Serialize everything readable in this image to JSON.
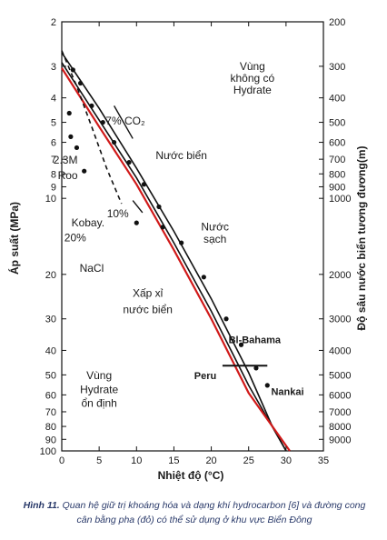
{
  "chart_data": {
    "type": "line",
    "xlabel": "Nhiệt độ (°C)",
    "ylabel": "Áp suất (MPa)",
    "y2label": "Độ sâu nước biển tương đương(m)",
    "xlim": [
      0,
      35
    ],
    "ylim": [
      2,
      100
    ],
    "yscale": "log",
    "x_ticks": [
      "0",
      "5",
      "10",
      "15",
      "20",
      "25",
      "30",
      "35"
    ],
    "y_ticks": [
      "2",
      "3",
      "4",
      "5",
      "6",
      "7",
      "8",
      "9",
      "10",
      "20",
      "30",
      "40",
      "50",
      "60",
      "70",
      "80",
      "90",
      "100"
    ],
    "y2_ticks": [
      "200",
      "300",
      "400",
      "500",
      "600",
      "700",
      "800",
      "900",
      "1000",
      "2000",
      "3000",
      "4000",
      "5000",
      "6000",
      "7000",
      "8000",
      "9000"
    ],
    "series": [
      {
        "name": "Nước sạch",
        "color": "#111111",
        "style": "solid",
        "points": [
          [
            0,
            2.65
          ],
          [
            5,
            4.4
          ],
          [
            10,
            7.6
          ],
          [
            15,
            13.5
          ],
          [
            20,
            25
          ],
          [
            25,
            49
          ],
          [
            28,
            78
          ],
          [
            30,
            100
          ]
        ]
      },
      {
        "name": "Nước biển",
        "color": "#111111",
        "style": "solid",
        "points": [
          [
            0,
            2.9
          ],
          [
            5,
            4.9
          ],
          [
            10,
            8.3
          ],
          [
            15,
            15
          ],
          [
            20,
            28
          ],
          [
            25,
            55
          ],
          [
            30,
            100
          ]
        ]
      },
      {
        "name": "Xấp xỉ nước biển",
        "color": "#d11a1a",
        "style": "solid",
        "points": [
          [
            0,
            3.05
          ],
          [
            5,
            5.2
          ],
          [
            10,
            8.8
          ],
          [
            15,
            16
          ],
          [
            20,
            30
          ],
          [
            25,
            59
          ],
          [
            30.5,
            100
          ]
        ]
      },
      {
        "name": "",
        "color": "#111111",
        "style": "dashed",
        "points": [
          [
            0,
            2.6
          ],
          [
            2,
            3.6
          ],
          [
            4,
            5.2
          ],
          [
            6,
            7.6
          ],
          [
            8,
            10.5
          ]
        ]
      }
    ],
    "markers": [
      {
        "x": 1.5,
        "y": 3.1
      },
      {
        "x": 2.5,
        "y": 3.5
      },
      {
        "x": 4,
        "y": 4.3
      },
      {
        "x": 5.5,
        "y": 5.0
      },
      {
        "x": 7,
        "y": 6.0
      },
      {
        "x": 9,
        "y": 7.2
      },
      {
        "x": 11,
        "y": 8.8
      },
      {
        "x": 13,
        "y": 10.8
      },
      {
        "x": 16,
        "y": 15
      },
      {
        "x": 19,
        "y": 20.5
      },
      {
        "x": 22,
        "y": 30
      },
      {
        "x": 24,
        "y": 38
      },
      {
        "x": 26,
        "y": 47
      },
      {
        "x": 27.5,
        "y": 55
      },
      {
        "x": 1,
        "y": 4.6
      },
      {
        "x": 2,
        "y": 6.3
      },
      {
        "x": 3,
        "y": 7.8
      },
      {
        "x": 10,
        "y": 12.5
      },
      {
        "x": 13.5,
        "y": 13
      },
      {
        "x": 1.2,
        "y": 5.7
      }
    ],
    "annotations": [
      {
        "text": "Vùng",
        "x": 25.5,
        "y": 3.1,
        "weight": "normal"
      },
      {
        "text": "không có",
        "x": 25.5,
        "y": 3.45,
        "weight": "normal"
      },
      {
        "text": "Hydrate",
        "x": 25.5,
        "y": 3.85,
        "weight": "normal"
      },
      {
        "text": "7% CO₂",
        "x": 8.5,
        "y": 5.1,
        "weight": "normal"
      },
      {
        "text": "Nước biển",
        "x": 16,
        "y": 7.0,
        "weight": "normal"
      },
      {
        "text": "2.3M",
        "x": 0.5,
        "y": 7.3,
        "weight": "normal"
      },
      {
        "text": "Roo",
        "x": 0.8,
        "y": 8.4,
        "weight": "normal"
      },
      {
        "text": "10%",
        "x": 7.5,
        "y": 11.9,
        "weight": "normal"
      },
      {
        "text": "Kobay.",
        "x": 3.5,
        "y": 12.9,
        "weight": "normal"
      },
      {
        "text": "20%",
        "x": 1.8,
        "y": 14.8,
        "weight": "normal"
      },
      {
        "text": "Nước",
        "x": 20.5,
        "y": 13.4,
        "weight": "normal"
      },
      {
        "text": "sạch",
        "x": 20.5,
        "y": 15.0,
        "weight": "normal"
      },
      {
        "text": "NaCl",
        "x": 4,
        "y": 19.5,
        "weight": "normal"
      },
      {
        "text": "Xấp xỉ",
        "x": 11.5,
        "y": 24.5,
        "weight": "normal"
      },
      {
        "text": "nước biển",
        "x": 11.5,
        "y": 28.5,
        "weight": "normal"
      },
      {
        "text": "Bl-Bahama",
        "x": 25.8,
        "y": 37.5,
        "weight": "bold"
      },
      {
        "text": "Peru",
        "x": 19.2,
        "y": 52,
        "weight": "bold"
      },
      {
        "text": "Nankai",
        "x": 30.2,
        "y": 60,
        "weight": "bold"
      },
      {
        "text": "Vùng",
        "x": 5,
        "y": 52,
        "weight": "normal"
      },
      {
        "text": "Hydrate",
        "x": 5,
        "y": 59,
        "weight": "normal"
      },
      {
        "text": "ổn định",
        "x": 5,
        "y": 67,
        "weight": "normal"
      }
    ]
  },
  "caption": {
    "label": "Hình 11.",
    "text": "Quan hệ giữ trị khoáng hóa và dạng khí hydrocarbon [6] và đường cong cân bằng pha (đỏ) có thể sử dụng ở khu vực Biển Đông"
  }
}
